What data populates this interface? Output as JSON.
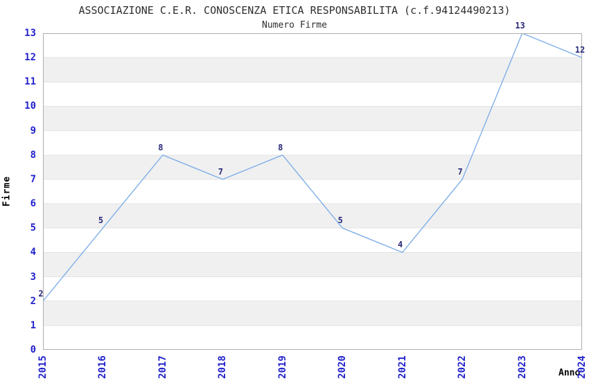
{
  "header": {
    "title": "ASSOCIAZIONE C.E.R. CONOSCENZA ETICA RESPONSABILITA (c.f.94124490213)",
    "subtitle": "Numero Firme"
  },
  "axes": {
    "y_label": "Firme",
    "x_label": "Anno"
  },
  "chart_data": {
    "type": "line",
    "title": "ASSOCIAZIONE C.E.R. CONOSCENZA ETICA RESPONSABILITA (c.f.94124490213)",
    "subtitle": "Numero Firme",
    "xlabel": "Anno",
    "ylabel": "Firme",
    "categories": [
      "2015",
      "2016",
      "2017",
      "2018",
      "2019",
      "2020",
      "2021",
      "2022",
      "2023",
      "2024"
    ],
    "values": [
      2,
      5,
      8,
      7,
      8,
      5,
      4,
      7,
      13,
      12
    ],
    "ylim": [
      0,
      13
    ],
    "ytick_step": 1,
    "legend_position": "none",
    "grid": "alternating horizontal bands with integer gridlines",
    "colors": {
      "line": "#7fafe8",
      "tick_labels": "#2222cc",
      "data_labels": "#29297a",
      "band": "#f0f0f0",
      "gridline": "#e3e3e3",
      "frame": "#adadad",
      "title_text": "#2e2e2e",
      "background": "#ffffff"
    }
  }
}
